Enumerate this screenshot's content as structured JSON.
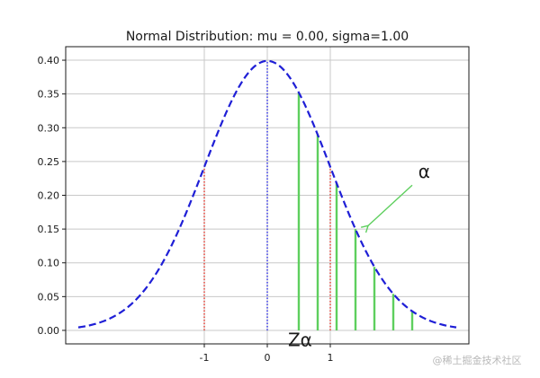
{
  "chart_data": {
    "type": "line",
    "title": "Normal Distribution: mu = 0.00, sigma=1.00",
    "mu": 0.0,
    "sigma": 1.0,
    "xlim": [
      -3.2,
      3.2
    ],
    "ylim": [
      -0.02,
      0.42
    ],
    "xticks": [
      -1,
      0,
      1
    ],
    "xtick_labels": [
      "-1",
      "0",
      "1"
    ],
    "yticks": [
      0.0,
      0.05,
      0.1,
      0.15,
      0.2,
      0.25,
      0.3,
      0.35,
      0.4
    ],
    "ytick_labels": [
      "0.00",
      "0.05",
      "0.10",
      "0.15",
      "0.20",
      "0.25",
      "0.30",
      "0.35",
      "0.40"
    ],
    "grid": true,
    "series": [
      {
        "style": "dashed",
        "color": "#1f1fd6",
        "x_range": [
          -3.0,
          3.0
        ]
      }
    ],
    "vlines": [
      {
        "x": -1,
        "y": [
          0,
          0.242
        ],
        "color": "#e8352a",
        "style": "dotted"
      },
      {
        "x": 1,
        "y": [
          0,
          0.242
        ],
        "color": "#e8352a",
        "style": "dotted"
      },
      {
        "x": 0,
        "y": [
          0,
          0.399
        ],
        "color": "#2a2ae8",
        "style": "dotted"
      }
    ],
    "stems": {
      "color": "#5ecf5e",
      "x": [
        0.5,
        0.8,
        1.1,
        1.4,
        1.7,
        2.0,
        2.3
      ],
      "y": [
        0.352,
        0.29,
        0.218,
        0.15,
        0.094,
        0.054,
        0.028
      ]
    },
    "annotations": [
      {
        "text": "α",
        "x": 2.32,
        "y": 0.218,
        "arrow_to": [
          1.6,
          0.155
        ],
        "color": "#5ecf5e"
      },
      {
        "text": "Zα",
        "x": 0.52,
        "y": -0.013
      }
    ]
  },
  "watermark": "@稀土掘金技术社区"
}
